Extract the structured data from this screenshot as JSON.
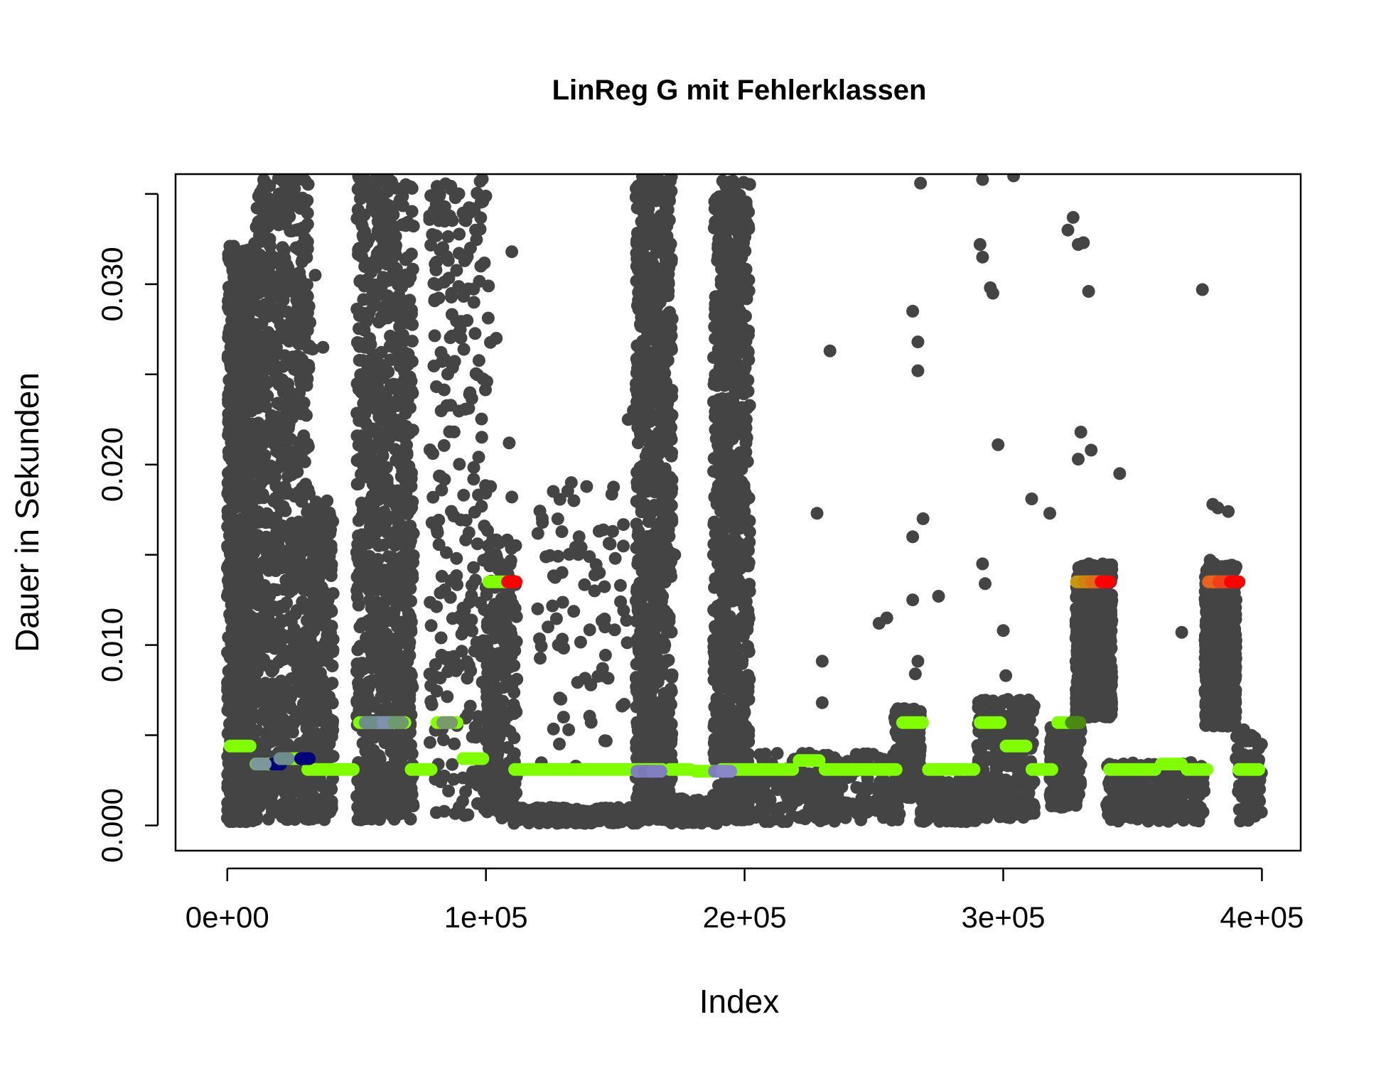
{
  "chart_data": {
    "type": "scatter",
    "title": "LinReg G mit Fehlerklassen",
    "xlabel": "Index",
    "ylabel": "Dauer in Sekunden",
    "xlim": [
      -20000,
      415000
    ],
    "ylim": [
      -0.0014,
      0.0361
    ],
    "x_ticks": [
      0,
      100000,
      200000,
      300000,
      400000
    ],
    "x_tick_labels": [
      "0e+00",
      "1e+05",
      "2e+05",
      "3e+05",
      "4e+05"
    ],
    "y_ticks": [
      0.0,
      0.005,
      0.01,
      0.015,
      0.02,
      0.025,
      0.03,
      0.035
    ],
    "y_tick_labels": [
      "0.000",
      "",
      "0.010",
      "",
      "0.020",
      "",
      "0.030",
      ""
    ],
    "grid": false,
    "legend": "none",
    "colors": {
      "observations": "#444444",
      "prediction": "#7FFF00",
      "error_high_1": "#FF0000",
      "error_high_2": "#E8641C",
      "error_high_3": "#C8960A",
      "error_low_1": "#00007A",
      "error_low_2": "#8080C0",
      "error_low_3": "#7A9A9A"
    },
    "series": [
      {
        "role": "observations",
        "color": "#444444",
        "clusters": [
          {
            "x": [
              0,
              10000
            ],
            "y_range": [
              0.0002,
              0.032
            ],
            "density": "high"
          },
          {
            "x": [
              10000,
              32000
            ],
            "y_range": [
              0.0003,
              0.036
            ],
            "density": "high"
          },
          {
            "x": [
              32000,
              41000
            ],
            "y_range": [
              0.0003,
              0.018
            ],
            "density": "medium"
          },
          {
            "x": [
              50000,
              72000
            ],
            "y_range": [
              0.0003,
              0.036
            ],
            "density": "high"
          },
          {
            "x": [
              78000,
              102000
            ],
            "y_range": [
              0.0003,
              0.036
            ],
            "density": "medium"
          },
          {
            "x": [
              100000,
              112000
            ],
            "y_range": [
              0.0003,
              0.016
            ],
            "density": "medium"
          },
          {
            "x": [
              110000,
              160000
            ],
            "y_range": [
              0.0001,
              0.001
            ],
            "density": "medium"
          },
          {
            "x": [
              120000,
              155000
            ],
            "y_range": [
              0.003,
              0.019
            ],
            "density": "sparse"
          },
          {
            "x": [
              158000,
              172000
            ],
            "y_range": [
              0.0003,
              0.036
            ],
            "density": "high"
          },
          {
            "x": [
              170000,
              190000
            ],
            "y_range": [
              0.0001,
              0.0015
            ],
            "density": "medium"
          },
          {
            "x": [
              188000,
              202000
            ],
            "y_range": [
              0.0003,
              0.036
            ],
            "density": "high"
          },
          {
            "x": [
              200000,
              260000
            ],
            "y_range": [
              0.0002,
              0.004
            ],
            "density": "medium"
          },
          {
            "x": [
              258000,
              268000
            ],
            "y_range": [
              0.0015,
              0.0065
            ],
            "density": "medium"
          },
          {
            "x": [
              268000,
              290000
            ],
            "y_range": [
              0.0002,
              0.0025
            ],
            "density": "medium"
          },
          {
            "x": [
              290000,
              312000
            ],
            "y_range": [
              0.0003,
              0.007
            ],
            "density": "medium"
          },
          {
            "x": [
              318000,
              330000
            ],
            "y_range": [
              0.001,
              0.0055
            ],
            "density": "medium"
          },
          {
            "x": [
              328000,
              342000
            ],
            "y_range": [
              0.006,
              0.0145
            ],
            "density": "high"
          },
          {
            "x": [
              340000,
              378000
            ],
            "y_range": [
              0.0002,
              0.0035
            ],
            "density": "medium"
          },
          {
            "x": [
              378000,
              390000
            ],
            "y_range": [
              0.0055,
              0.0145
            ],
            "density": "high"
          },
          {
            "x": [
              390000,
              400000
            ],
            "y_range": [
              0.0002,
              0.005
            ],
            "density": "sparse"
          }
        ],
        "outliers": [
          [
            1000,
            0.0321
          ],
          [
            2500,
            0.0321
          ],
          [
            4000,
            0.0301
          ],
          [
            5000,
            0.0296
          ],
          [
            29000,
            0.0258
          ],
          [
            33000,
            0.0264
          ],
          [
            37000,
            0.0265
          ],
          [
            34000,
            0.0305
          ],
          [
            96000,
            0.033
          ],
          [
            94000,
            0.032
          ],
          [
            98000,
            0.031
          ],
          [
            101000,
            0.0299
          ],
          [
            104000,
            0.027
          ],
          [
            110000,
            0.0318
          ],
          [
            109000,
            0.0212
          ],
          [
            110000,
            0.0182
          ],
          [
            120000,
            0.012
          ],
          [
            124000,
            0.011
          ],
          [
            128000,
            0.01
          ],
          [
            129000,
            0.007
          ],
          [
            130000,
            0.006
          ],
          [
            132000,
            0.0053
          ],
          [
            133000,
            0.019
          ],
          [
            134000,
            0.018
          ],
          [
            136000,
            0.016
          ],
          [
            140000,
            0.0149
          ],
          [
            142000,
            0.013
          ],
          [
            146000,
            0.011
          ],
          [
            149000,
            0.0163
          ],
          [
            150000,
            0.0148
          ],
          [
            152000,
            0.0133
          ],
          [
            155000,
            0.0225
          ],
          [
            157000,
            0.023
          ],
          [
            161000,
            0.033
          ],
          [
            163000,
            0.0358
          ],
          [
            168000,
            0.035
          ],
          [
            171000,
            0.035
          ],
          [
            173000,
            0.015
          ],
          [
            188000,
            0.015
          ],
          [
            190000,
            0.0325
          ],
          [
            192000,
            0.031
          ],
          [
            196000,
            0.0305
          ],
          [
            198000,
            0.032
          ],
          [
            200000,
            0.033
          ],
          [
            197000,
            0.0365
          ],
          [
            225000,
            0.004
          ],
          [
            228000,
            0.0173
          ],
          [
            230000,
            0.0091
          ],
          [
            233000,
            0.0263
          ],
          [
            230000,
            0.0068
          ],
          [
            252000,
            0.0112
          ],
          [
            255000,
            0.0115
          ],
          [
            265000,
            0.0125
          ],
          [
            265000,
            0.016
          ],
          [
            265000,
            0.0285
          ],
          [
            267000,
            0.0268
          ],
          [
            267000,
            0.0252
          ],
          [
            267000,
            0.0091
          ],
          [
            266000,
            0.0084
          ],
          [
            269000,
            0.017
          ],
          [
            270000,
            0.0365
          ],
          [
            268000,
            0.0356
          ],
          [
            275000,
            0.0127
          ],
          [
            291000,
            0.0322
          ],
          [
            292000,
            0.0315
          ],
          [
            292000,
            0.0145
          ],
          [
            293000,
            0.0134
          ],
          [
            292000,
            0.0358
          ],
          [
            295000,
            0.0298
          ],
          [
            296000,
            0.0295
          ],
          [
            298000,
            0.0211
          ],
          [
            300000,
            0.0108
          ],
          [
            301000,
            0.0083
          ],
          [
            304000,
            0.036
          ],
          [
            311000,
            0.0181
          ],
          [
            318000,
            0.0173
          ],
          [
            325000,
            0.033
          ],
          [
            327000,
            0.0337
          ],
          [
            329000,
            0.0322
          ],
          [
            331000,
            0.0323
          ],
          [
            333000,
            0.0296
          ],
          [
            330000,
            0.0218
          ],
          [
            334000,
            0.0208
          ],
          [
            329000,
            0.0203
          ],
          [
            345000,
            0.0195
          ],
          [
            377000,
            0.0297
          ],
          [
            381000,
            0.0178
          ],
          [
            383000,
            0.0176
          ],
          [
            387000,
            0.0174
          ],
          [
            381000,
            0.0369
          ],
          [
            380000,
            0.0147
          ],
          [
            393000,
            0.0053
          ],
          [
            369000,
            0.0107
          ],
          [
            384000,
            0.0138
          ]
        ]
      },
      {
        "role": "prediction",
        "color": "#7FFF00",
        "segments": [
          {
            "x": [
              0,
              10000
            ],
            "y": 0.0044
          },
          {
            "x": [
              10000,
              20000
            ],
            "y": 0.0034
          },
          {
            "x": [
              20000,
              30000
            ],
            "y": 0.0037
          },
          {
            "x": [
              30000,
              50000
            ],
            "y": 0.0031
          },
          {
            "x": [
              50000,
              70000
            ],
            "y": 0.0057
          },
          {
            "x": [
              70000,
              80000
            ],
            "y": 0.0031
          },
          {
            "x": [
              80000,
              90000
            ],
            "y": 0.0057
          },
          {
            "x": [
              90000,
              100000
            ],
            "y": 0.0037
          },
          {
            "x": [
              100000,
              110000
            ],
            "y": 0.0135
          },
          {
            "x": [
              110000,
              170000
            ],
            "y": 0.0031
          },
          {
            "x": [
              170000,
              180000
            ],
            "y": 0.0031
          },
          {
            "x": [
              180000,
              190000
            ],
            "y": 0.003
          },
          {
            "x": [
              190000,
              220000
            ],
            "y": 0.0031
          },
          {
            "x": [
              220000,
              230000
            ],
            "y": 0.0036
          },
          {
            "x": [
              230000,
              260000
            ],
            "y": 0.0031
          },
          {
            "x": [
              260000,
              270000
            ],
            "y": 0.0057
          },
          {
            "x": [
              270000,
              290000
            ],
            "y": 0.0031
          },
          {
            "x": [
              290000,
              300000
            ],
            "y": 0.0057
          },
          {
            "x": [
              300000,
              310000
            ],
            "y": 0.0044
          },
          {
            "x": [
              310000,
              320000
            ],
            "y": 0.0031
          },
          {
            "x": [
              320000,
              330000
            ],
            "y": 0.0057
          },
          {
            "x": [
              330000,
              340000
            ],
            "y": 0.0135
          },
          {
            "x": [
              340000,
              360000
            ],
            "y": 0.0031
          },
          {
            "x": [
              360000,
              370000
            ],
            "y": 0.0034
          },
          {
            "x": [
              370000,
              380000
            ],
            "y": 0.0031
          },
          {
            "x": [
              380000,
              390000
            ],
            "y": 0.0135
          },
          {
            "x": [
              390000,
              400000
            ],
            "y": 0.0031
          }
        ]
      },
      {
        "role": "error-classes",
        "markers": [
          {
            "x": 19000,
            "y": 0.0034,
            "color": "#00007A"
          },
          {
            "x": 13000,
            "y": 0.0034,
            "color": "#7A9A9A"
          },
          {
            "x": 22000,
            "y": 0.0037,
            "color": "#6E8E8E"
          },
          {
            "x": 30000,
            "y": 0.0037,
            "color": "#00007A"
          },
          {
            "x": 57000,
            "y": 0.0057,
            "color": "#8090B0"
          },
          {
            "x": 55000,
            "y": 0.0057,
            "color": "#6E8E8E"
          },
          {
            "x": 62000,
            "y": 0.0057,
            "color": "#8090B0"
          },
          {
            "x": 66000,
            "y": 0.0057,
            "color": "#6E9A6E"
          },
          {
            "x": 85000,
            "y": 0.0057,
            "color": "#7A9A6E"
          },
          {
            "x": 160000,
            "y": 0.003,
            "color": "#8080C0"
          },
          {
            "x": 163000,
            "y": 0.003,
            "color": "#7A7AB8"
          },
          {
            "x": 166000,
            "y": 0.003,
            "color": "#8080C0"
          },
          {
            "x": 190000,
            "y": 0.003,
            "color": "#8080C0"
          },
          {
            "x": 193000,
            "y": 0.003,
            "color": "#8888C8"
          },
          {
            "x": 110000,
            "y": 0.0135,
            "color": "#FF0000"
          },
          {
            "x": 330000,
            "y": 0.0135,
            "color": "#C8960A"
          },
          {
            "x": 333000,
            "y": 0.0135,
            "color": "#D0820E"
          },
          {
            "x": 336000,
            "y": 0.0135,
            "color": "#E06A16"
          },
          {
            "x": 339500,
            "y": 0.0135,
            "color": "#FF0000"
          },
          {
            "x": 381000,
            "y": 0.0135,
            "color": "#E8641C"
          },
          {
            "x": 385000,
            "y": 0.0135,
            "color": "#F04018"
          },
          {
            "x": 389500,
            "y": 0.0135,
            "color": "#FF0000"
          },
          {
            "x": 328000,
            "y": 0.0057,
            "color": "#4A8A10"
          }
        ]
      }
    ]
  }
}
